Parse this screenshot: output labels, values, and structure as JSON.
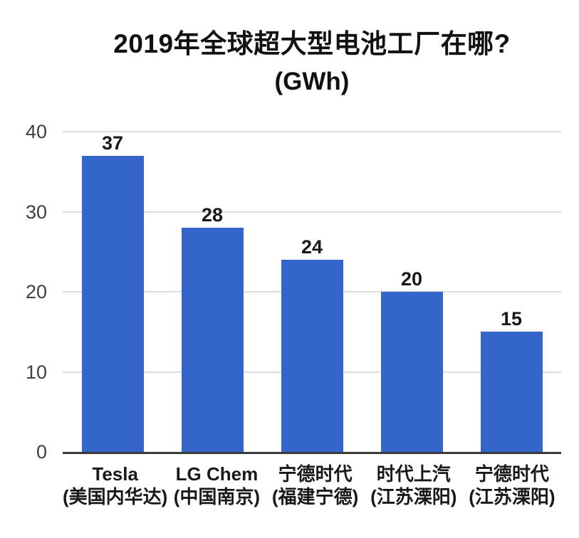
{
  "title": {
    "line1": "2019年全球超大型电池工厂在哪?",
    "line2": "(GWh)"
  },
  "chart_data": {
    "type": "bar",
    "title": "2019年全球超大型电池工厂在哪? (GWh)",
    "unit": "GWh",
    "categories": [
      {
        "name": "Tesla",
        "location": "(美国内华达)"
      },
      {
        "name": "LG Chem",
        "location": "(中国南京)"
      },
      {
        "name": "宁德时代",
        "location": "(福建宁德)"
      },
      {
        "name": "时代上汽",
        "location": "(江苏溧阳)"
      },
      {
        "name": "宁德时代",
        "location": "(江苏溧阳)"
      }
    ],
    "values": [
      37,
      28,
      24,
      20,
      15
    ],
    "ylim": [
      0,
      40
    ],
    "y_ticks": [
      0,
      10,
      20,
      30,
      40
    ],
    "grid": true,
    "legend": false,
    "bar_color": "#3465c8",
    "colors": {
      "grid_line": "#dcdcdc",
      "axis_line": "#3a3a3a",
      "tick_label": "#3f3f3f",
      "value_label": "#191919",
      "category_label": "#191919",
      "title": "#111111"
    }
  }
}
